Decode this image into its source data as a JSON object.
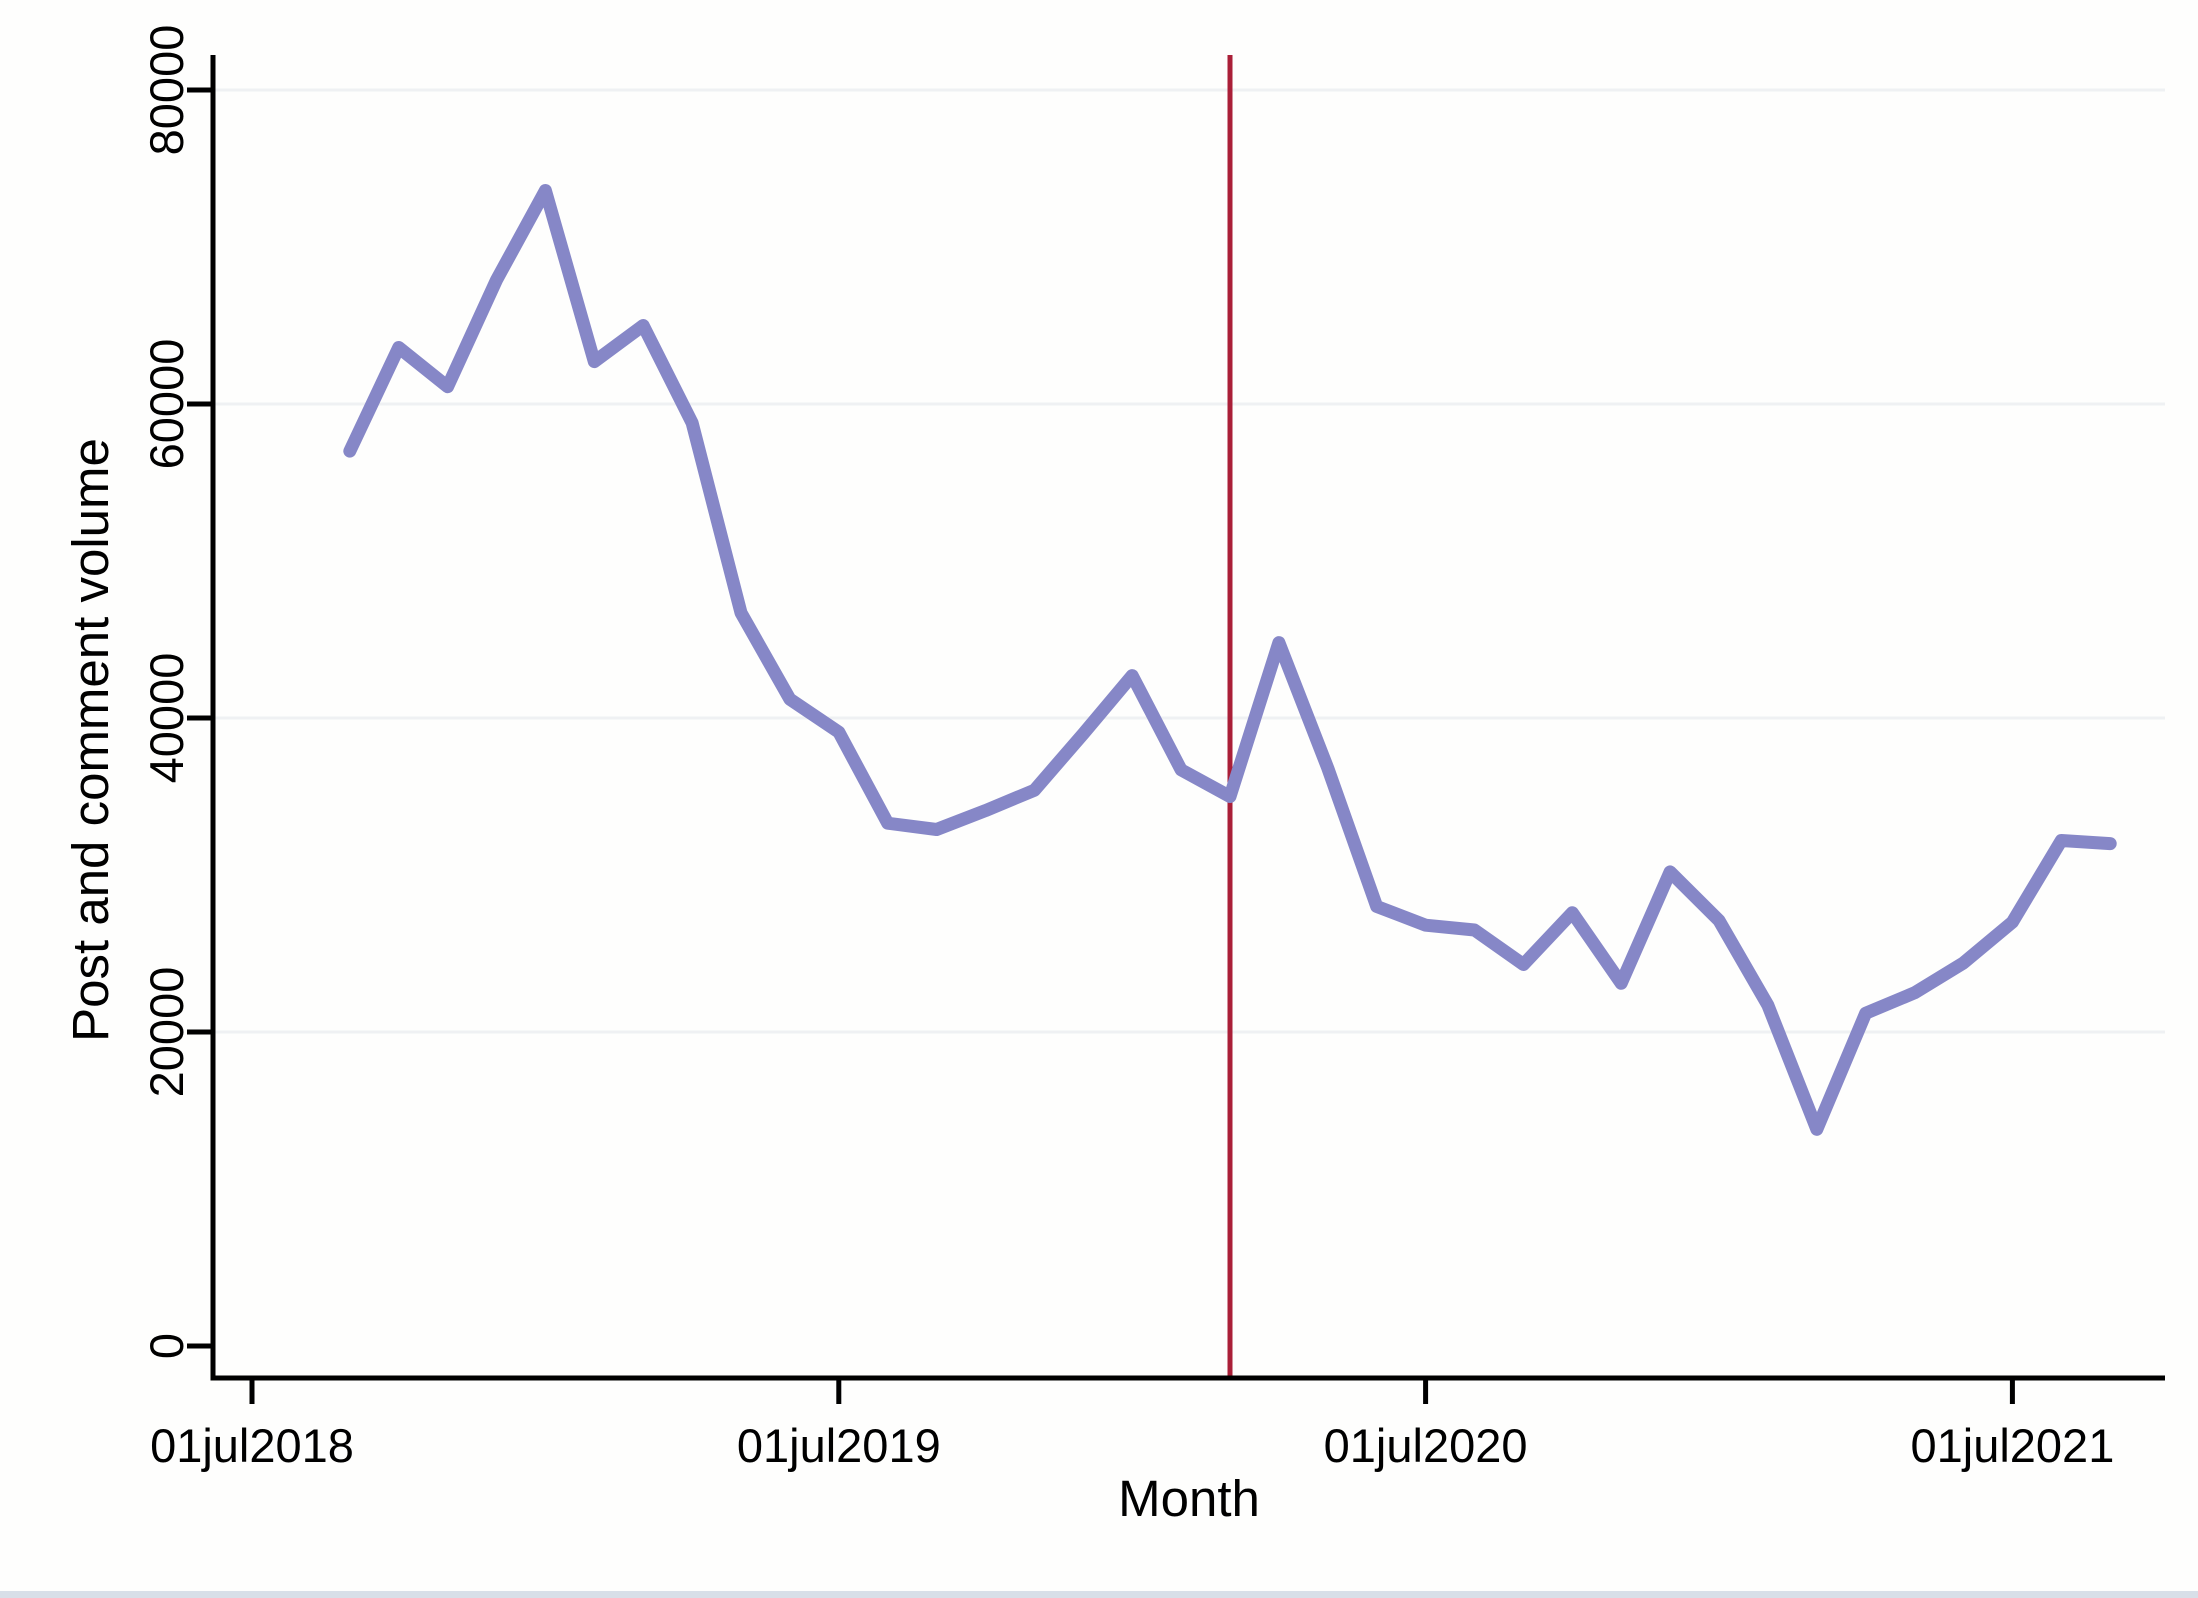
{
  "chart_data": {
    "type": "line",
    "title": "",
    "xlabel": "Month",
    "ylabel": "Post and comment volume",
    "x_tick_labels": [
      "01jul2018",
      "01jul2019",
      "01jul2020",
      "01jul2021"
    ],
    "x_tick_month_offsets": [
      0,
      12,
      24,
      36
    ],
    "y_ticks": [
      0,
      20000,
      40000,
      60000,
      80000
    ],
    "y_tick_labels": [
      "0",
      "20000",
      "40000",
      "60000",
      "80000"
    ],
    "ylim": [
      0,
      82200
    ],
    "grid": "horizontal gridlines at labeled y values, very light gray",
    "legend": "none",
    "reference_line": {
      "date": "01mar2020",
      "month_offset": 20,
      "color": "#AA1F38",
      "orientation": "vertical"
    },
    "series": [
      {
        "name": "Post and comment volume",
        "color": "#8687C7",
        "start_month_offset": 2,
        "months": [
          "sep2018",
          "oct2018",
          "nov2018",
          "dec2018",
          "jan2019",
          "feb2019",
          "mar2019",
          "apr2019",
          "may2019",
          "jun2019",
          "jul2019",
          "aug2019",
          "sep2019",
          "oct2019",
          "nov2019",
          "dec2019",
          "jan2020",
          "feb2020",
          "mar2020",
          "apr2020",
          "may2020",
          "jun2020",
          "jul2020",
          "aug2020",
          "sep2020",
          "oct2020",
          "nov2020",
          "dec2020",
          "jan2021",
          "feb2021",
          "mar2021",
          "apr2021",
          "may2021",
          "jun2021",
          "jul2021",
          "aug2021",
          "sep2021"
        ],
        "values": [
          57000,
          63600,
          61100,
          67900,
          73600,
          62700,
          65000,
          58800,
          46700,
          41200,
          39100,
          33300,
          32900,
          34100,
          35400,
          39000,
          42700,
          36700,
          35000,
          44800,
          36800,
          28000,
          26800,
          26500,
          24300,
          27600,
          23100,
          30200,
          27100,
          21700,
          13800,
          21200,
          22500,
          24400,
          27000,
          32200,
          32000
        ]
      }
    ],
    "axis_color": "#000000",
    "grid_color": "#EFF1F3",
    "background_color": "#FEFEFD"
  },
  "page": {
    "bottom_bar_color": "#D8DFE8"
  }
}
